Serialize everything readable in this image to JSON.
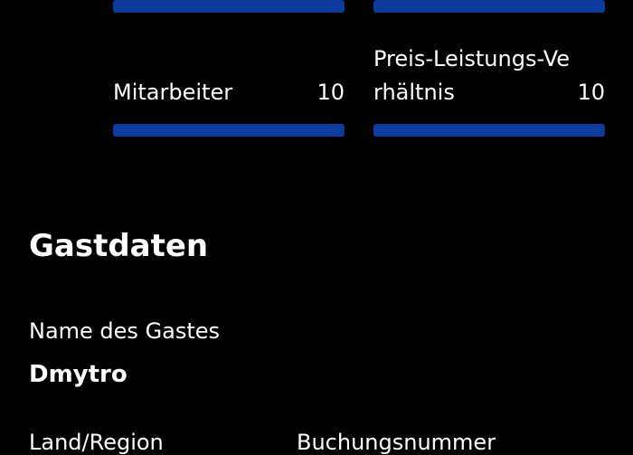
{
  "ratings": [
    {
      "label": "Mitarbeiter",
      "score": 10
    },
    {
      "label": "Preis-Leistungs-Verhältnis",
      "score": 10
    }
  ],
  "guest_section": {
    "title": "Gastdaten",
    "name_label": "Name des Gastes",
    "name_value": "Dmytro",
    "country_label": "Land/Region",
    "booking_label": "Buchungsnummer"
  }
}
